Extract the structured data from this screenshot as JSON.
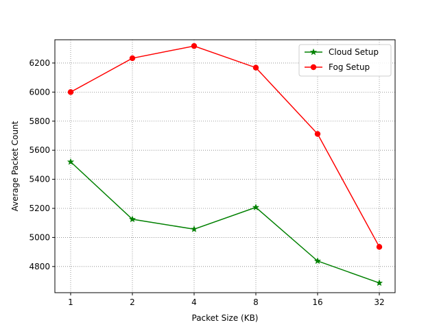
{
  "chart_data": {
    "type": "line",
    "title": "",
    "xlabel": "Packet Size (KB)",
    "ylabel": "Average Packet Count",
    "categories": [
      "1",
      "2",
      "4",
      "8",
      "16",
      "32"
    ],
    "yticks": [
      4800,
      5000,
      5200,
      5400,
      5600,
      5800,
      6000,
      6200
    ],
    "ylim": [
      4620,
      6360
    ],
    "grid": true,
    "legend_position": "upper right",
    "series": [
      {
        "name": "Cloud Setup",
        "color": "#008000",
        "marker": "star",
        "values": [
          5520,
          5125,
          5057,
          5207,
          4838,
          4687
        ]
      },
      {
        "name": "Fog Setup",
        "color": "#ff0000",
        "marker": "circle",
        "values": [
          6000,
          6233,
          6317,
          6168,
          5712,
          4935
        ]
      }
    ]
  }
}
